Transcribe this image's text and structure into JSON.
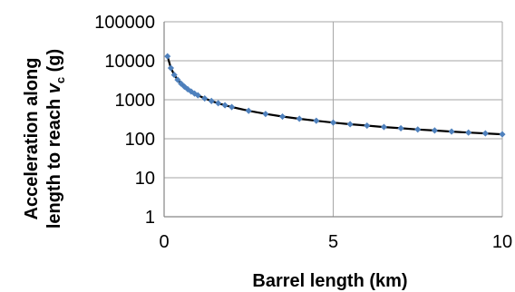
{
  "chart_data": {
    "type": "scatter",
    "title": "",
    "xlabel": "Barrel length (km)",
    "ylabel_line1": "Acceleration along",
    "ylabel_line2_prefix": "length to reach ",
    "ylabel_line2_symbol": "v",
    "ylabel_line2_subscript": "c",
    "ylabel_line2_suffix": " (g)",
    "xlim": [
      0,
      10
    ],
    "ylim": [
      1,
      100000
    ],
    "yscale": "log",
    "grid": true,
    "legend": "none",
    "x_ticks": [
      "0",
      "5",
      "10"
    ],
    "y_ticks": [
      "1",
      "10",
      "100",
      "1000",
      "10000",
      "100000"
    ],
    "series": [
      {
        "marker_color": "#4f81bd",
        "line_color": "#000000",
        "x": [
          0.1,
          0.2,
          0.3,
          0.4,
          0.5,
          0.6,
          0.7,
          0.8,
          0.9,
          1.0,
          1.2,
          1.4,
          1.6,
          1.8,
          2.0,
          2.5,
          3.0,
          3.5,
          4.0,
          4.5,
          5.0,
          5.5,
          6.0,
          6.5,
          7.0,
          7.5,
          8.0,
          8.5,
          9.0,
          9.5,
          10.0
        ],
        "y": [
          13000,
          6500,
          4333,
          3250,
          2600,
          2167,
          1857,
          1625,
          1444,
          1300,
          1083,
          929,
          813,
          722,
          650,
          520,
          433,
          371,
          325,
          289,
          260,
          236,
          217,
          200,
          186,
          173,
          163,
          153,
          144,
          137,
          130
        ]
      }
    ]
  }
}
